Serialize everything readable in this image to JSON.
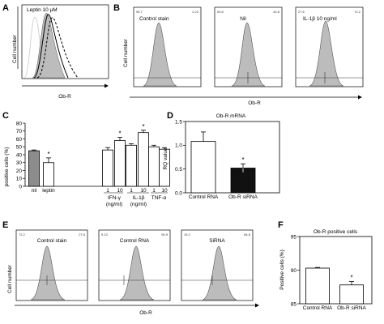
{
  "panel_letters": [
    "A",
    "B",
    "C",
    "D",
    "E",
    "F"
  ],
  "colors": {
    "hist_fill": "#bcbcbc",
    "bar_gray": "#8c8c8c",
    "bar_black": "#111111"
  },
  "chart_data": [
    {
      "panel": "A",
      "type": "area",
      "title": "Leptin 10 μM",
      "xlabel": "Ob-R",
      "ylabel": "Cell number",
      "series_styles": [
        "light-gray-line",
        "gray-filled",
        "solid-black",
        "dashed-black"
      ]
    },
    {
      "panel": "B",
      "type": "area",
      "xlabel": "Ob-R",
      "ylabel": "Cell number",
      "subplots": [
        {
          "title": "Control stain",
          "left_value": "95.7",
          "right_value": "2.23"
        },
        {
          "title": "Nil",
          "left_value": "53.8",
          "right_value": "44.8"
        },
        {
          "title": "IL-1β 10 ng/ml",
          "left_value": "27.6",
          "right_value": "72.2"
        }
      ]
    },
    {
      "panel": "C",
      "type": "bar",
      "ylabel": "positive cells (%)",
      "ylim": [
        0,
        80
      ],
      "yticks": [
        "0",
        "10",
        "20",
        "30",
        "40",
        "50",
        "60",
        "70",
        "80"
      ],
      "categories": [
        "nil",
        "leptin",
        "1",
        "10",
        "1",
        "10",
        "1",
        "10"
      ],
      "group_labels": [
        {
          "name": "IFN-γ",
          "unit": "(ng/ml)"
        },
        {
          "name": "IL-1β",
          "unit": "(ng/ml)"
        },
        {
          "name": "TNF-α",
          "unit": ""
        }
      ],
      "values": [
        45,
        30,
        46,
        58,
        52,
        68,
        50,
        47
      ],
      "errors": [
        1,
        6,
        3,
        4,
        2,
        3,
        2,
        2
      ],
      "fills": [
        "gray",
        "white",
        "white",
        "white",
        "white",
        "white",
        "white",
        "white"
      ],
      "significance": [
        "",
        "*",
        "",
        "*",
        "",
        "*",
        "",
        ""
      ]
    },
    {
      "panel": "D",
      "type": "bar",
      "title": "Ob-R mRNA",
      "ylabel": "RQ value",
      "ylim": [
        0,
        1.5
      ],
      "yticks": [
        "0.0",
        "0.5",
        "1.0",
        "1.5"
      ],
      "categories": [
        "Control RNA",
        "Ob-R siRNA"
      ],
      "values": [
        1.08,
        0.52
      ],
      "errors": [
        0.2,
        0.09
      ],
      "fills": [
        "white",
        "black"
      ],
      "significance": [
        "",
        "*"
      ]
    },
    {
      "panel": "E",
      "type": "area",
      "xlabel": "Ob-R",
      "ylabel": "Cell number",
      "subplots": [
        {
          "title": "Control stain",
          "left_value": "72.2",
          "right_value": "27.6"
        },
        {
          "title": "Control RNA",
          "left_value": "9.13",
          "right_value": "90.9"
        },
        {
          "title": "SiRNA",
          "left_value": "15.2",
          "right_value": "84.8"
        }
      ]
    },
    {
      "panel": "F",
      "type": "bar",
      "title": "Ob-R positive cells",
      "ylabel": "Positive cells (%)",
      "ylim": [
        85,
        95
      ],
      "yticks": [
        "85",
        "90",
        "95"
      ],
      "categories": [
        "Control RNA",
        "Ob-R siRNA"
      ],
      "values": [
        90.3,
        87.8
      ],
      "errors": [
        0.1,
        0.5
      ],
      "fills": [
        "white",
        "white"
      ],
      "significance": [
        "",
        "*"
      ]
    }
  ]
}
